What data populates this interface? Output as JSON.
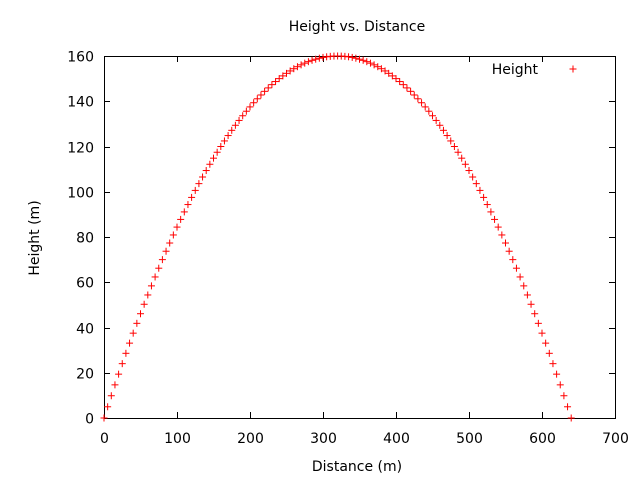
{
  "chart_data": {
    "type": "scatter",
    "title": "Height vs. Distance",
    "xlabel": "Distance (m)",
    "ylabel": "Height (m)",
    "xlim": [
      0,
      700
    ],
    "ylim": [
      0,
      160
    ],
    "x_ticks": [
      "0",
      "100",
      "200",
      "300",
      "400",
      "500",
      "600",
      "700"
    ],
    "y_ticks": [
      "0",
      "20",
      "40",
      "60",
      "80",
      "100",
      "120",
      "140",
      "160"
    ],
    "grid": false,
    "legend_position": "top-right",
    "series": [
      {
        "name": "Height",
        "color": "#ff0000",
        "marker": "plus",
        "x": [
          0,
          5,
          10,
          15,
          20,
          25,
          30,
          35,
          40,
          45,
          50,
          55,
          60,
          65,
          70,
          75,
          80,
          85,
          90,
          95,
          100,
          105,
          110,
          115,
          120,
          125,
          130,
          135,
          140,
          145,
          150,
          155,
          160,
          165,
          170,
          175,
          180,
          185,
          190,
          195,
          200,
          205,
          210,
          215,
          220,
          225,
          230,
          235,
          240,
          245,
          250,
          255,
          260,
          265,
          270,
          275,
          280,
          285,
          290,
          295,
          300,
          305,
          310,
          315,
          320,
          325,
          330,
          335,
          340,
          345,
          350,
          355,
          360,
          365,
          370,
          375,
          380,
          385,
          390,
          395,
          400,
          405,
          410,
          415,
          420,
          425,
          430,
          435,
          440,
          445,
          450,
          455,
          460,
          465,
          470,
          475,
          480,
          485,
          490,
          495,
          500,
          505,
          510,
          515,
          520,
          525,
          530,
          535,
          540,
          545,
          550,
          555,
          560,
          565,
          570,
          575,
          580,
          585,
          590,
          595,
          600,
          605,
          610,
          615,
          620,
          625,
          630,
          635,
          640
        ],
        "y": [
          0.0,
          4.96,
          9.84,
          14.65,
          19.38,
          24.02,
          28.59,
          33.09,
          37.5,
          41.84,
          46.09,
          50.27,
          54.38,
          58.4,
          62.34,
          66.21,
          70.0,
          73.71,
          77.34,
          80.9,
          84.38,
          87.77,
          91.09,
          94.34,
          97.5,
          100.59,
          103.59,
          106.52,
          109.38,
          112.15,
          114.84,
          117.46,
          120.0,
          122.46,
          124.84,
          127.15,
          129.38,
          131.52,
          133.59,
          135.59,
          137.5,
          139.34,
          141.09,
          142.77,
          144.38,
          145.9,
          147.34,
          148.71,
          150.0,
          151.21,
          152.34,
          153.4,
          154.38,
          155.27,
          156.09,
          156.84,
          157.5,
          158.09,
          158.59,
          159.02,
          159.38,
          159.65,
          159.84,
          159.96,
          160.0,
          159.96,
          159.84,
          159.65,
          159.38,
          159.02,
          158.59,
          158.09,
          157.5,
          156.84,
          156.09,
          155.27,
          154.38,
          153.4,
          152.34,
          151.21,
          150.0,
          148.71,
          147.34,
          145.9,
          144.38,
          142.77,
          141.09,
          139.34,
          137.5,
          135.59,
          133.59,
          131.52,
          129.38,
          127.15,
          124.84,
          122.46,
          120.0,
          117.46,
          114.84,
          112.15,
          109.38,
          106.52,
          103.59,
          100.59,
          97.5,
          94.34,
          91.09,
          87.77,
          84.38,
          80.9,
          77.34,
          73.71,
          70.0,
          66.21,
          62.34,
          58.4,
          54.38,
          50.27,
          46.09,
          41.84,
          37.5,
          33.09,
          28.59,
          24.02,
          19.38,
          14.65,
          9.84,
          4.96,
          0.0
        ]
      }
    ]
  }
}
